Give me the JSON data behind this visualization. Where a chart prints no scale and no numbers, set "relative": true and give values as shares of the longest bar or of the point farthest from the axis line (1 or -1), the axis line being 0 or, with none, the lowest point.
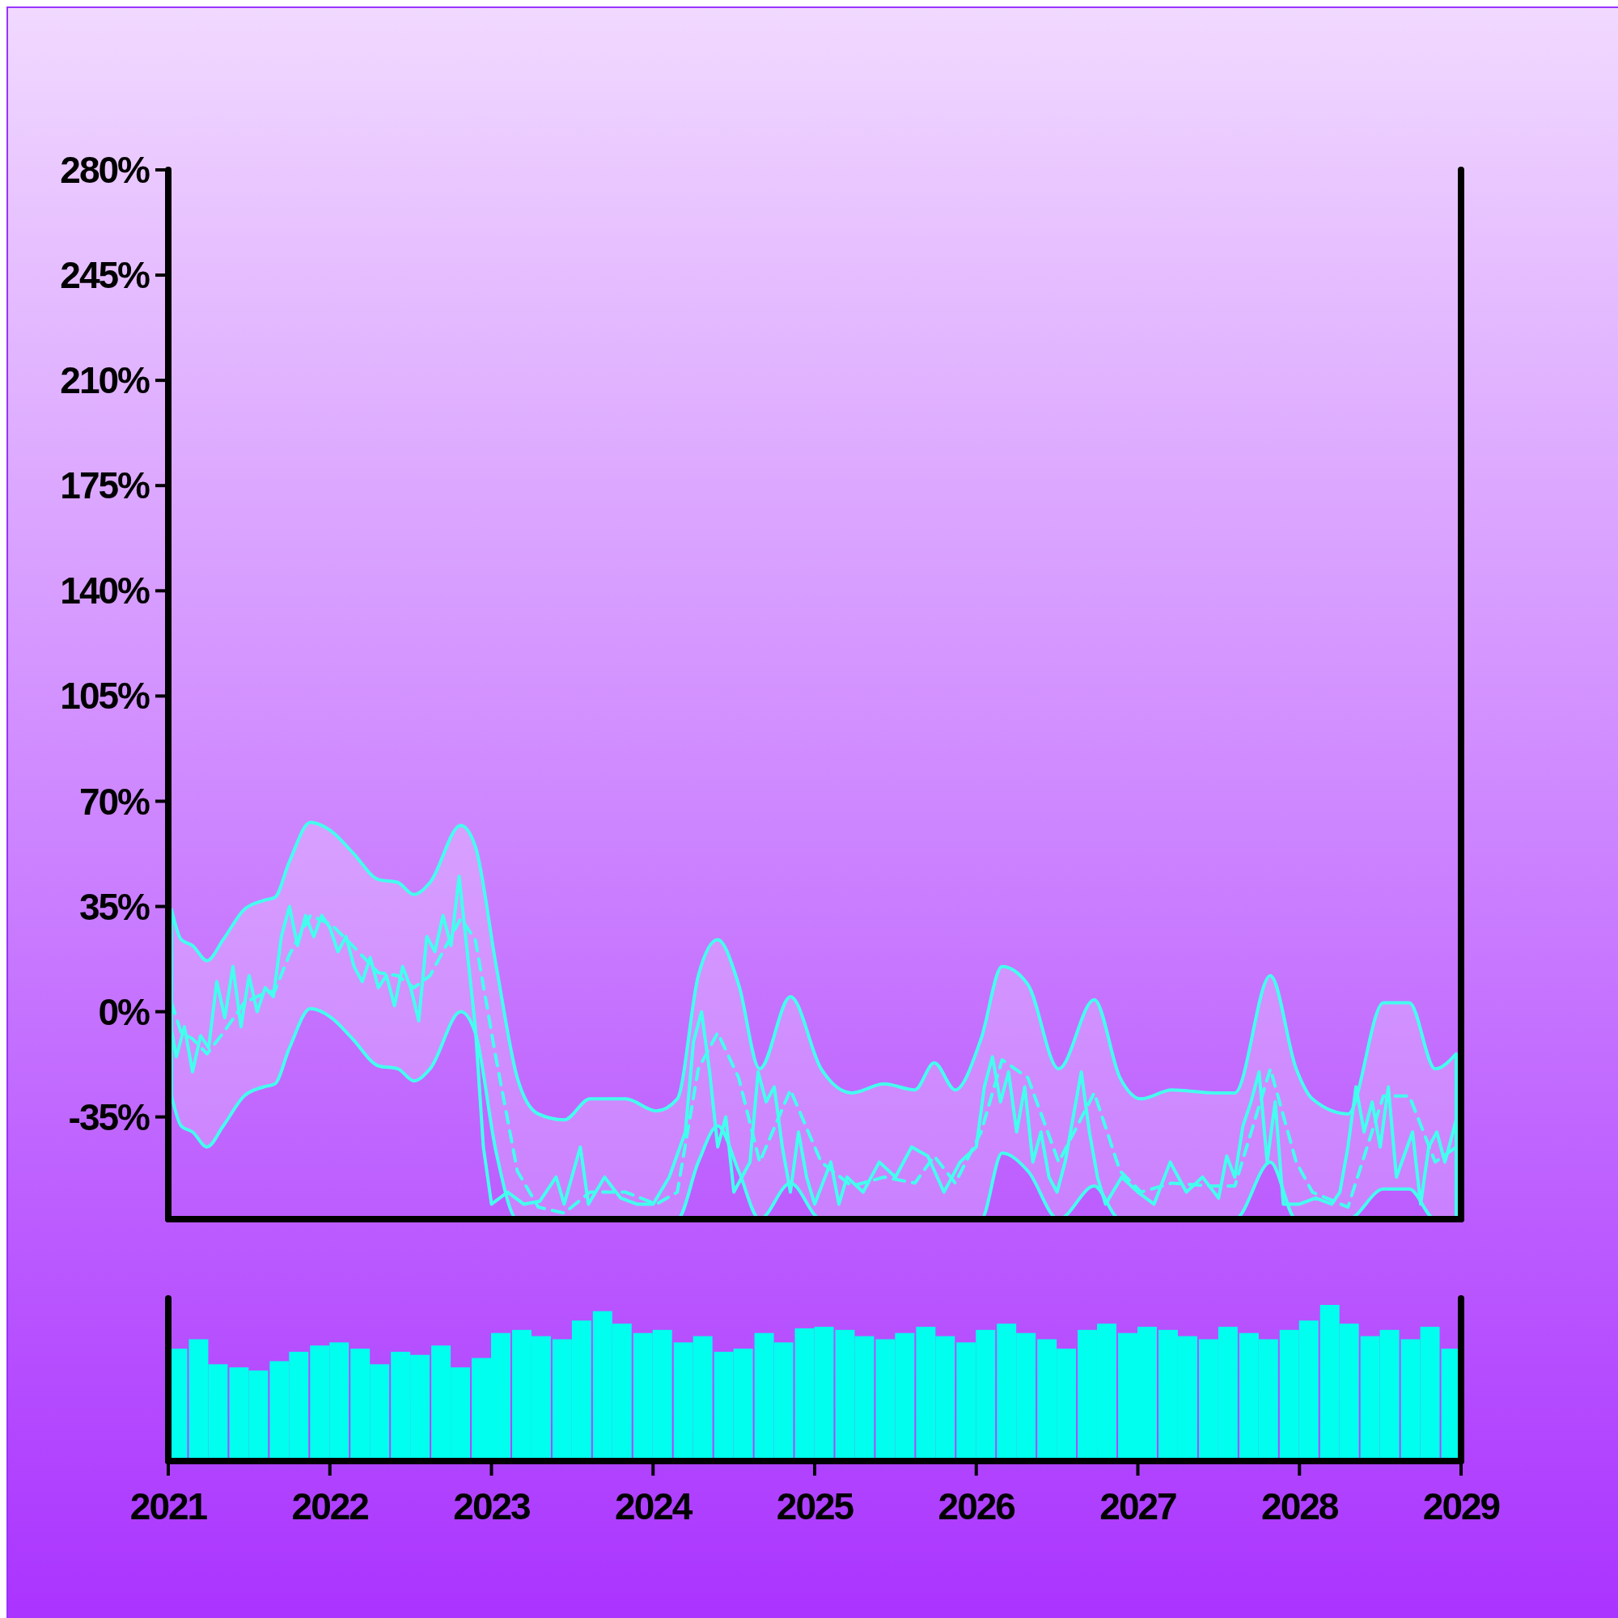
{
  "chart_data": [
    {
      "type": "line",
      "xlim": [
        2021,
        2029
      ],
      "ylim": [
        -69,
        280
      ],
      "yticks": [
        {
          "value": -35,
          "label": "-35%"
        },
        {
          "value": 0,
          "label": "0%"
        },
        {
          "value": 35,
          "label": "35%"
        },
        {
          "value": 70,
          "label": "70%"
        },
        {
          "value": 105,
          "label": "105%"
        },
        {
          "value": 140,
          "label": "140%"
        },
        {
          "value": 175,
          "label": "175%"
        },
        {
          "value": 210,
          "label": "210%"
        },
        {
          "value": 245,
          "label": "245%"
        },
        {
          "value": 280,
          "label": "280%"
        }
      ],
      "tick_labels": "y",
      "grid": false,
      "series": [
        {
          "type": "line",
          "line_style": "dashed",
          "color": "#44ffee",
          "x": [
            2021.02,
            2021.08,
            2021.15,
            2021.24,
            2021.34,
            2021.47,
            2021.59,
            2021.66,
            2021.75,
            2021.88,
            2022.01,
            2022.14,
            2022.3,
            2022.42,
            2022.52,
            2022.62,
            2022.81,
            2022.9,
            2023.03,
            2023.16,
            2023.29,
            2023.45,
            2023.61,
            2023.83,
            2024.02,
            2024.15,
            2024.28,
            2024.4,
            2024.53,
            2024.66,
            2024.85,
            2025.04,
            2025.23,
            2025.43,
            2025.62,
            2025.74,
            2025.87,
            2026.03,
            2026.16,
            2026.32,
            2026.51,
            2026.73,
            2026.89,
            2027.02,
            2027.21,
            2027.47,
            2027.6,
            2027.82,
            2027.98,
            2028.08,
            2028.3,
            2028.52,
            2028.68,
            2028.84,
            2028.97
          ],
          "values": [
            3,
            -7,
            -9,
            -14,
            -7,
            3,
            6,
            7,
            19,
            32,
            29,
            22,
            13,
            12,
            8,
            12,
            31,
            24,
            -16,
            -53,
            -65,
            -67,
            -60,
            -60,
            -64,
            -60,
            -19,
            -7,
            -22,
            -50,
            -26,
            -50,
            -58,
            -55,
            -57,
            -48,
            -57,
            -40,
            -16,
            -22,
            -50,
            -27,
            -53,
            -60,
            -57,
            -58,
            -58,
            -19,
            -50,
            -60,
            -65,
            -28,
            -28,
            -50,
            -45
          ],
          "upper": [
            34,
            24,
            22,
            17,
            24,
            34,
            37,
            38,
            50,
            63,
            60,
            53,
            44,
            43,
            39,
            43,
            62,
            55,
            15,
            -22,
            -34,
            -36,
            -29,
            -29,
            -33,
            -29,
            12,
            24,
            9,
            -19,
            5,
            -19,
            -27,
            -24,
            -26,
            -17,
            -26,
            -9,
            15,
            9,
            -19,
            4,
            -22,
            -29,
            -26,
            -27,
            -27,
            12,
            -19,
            -29,
            -34,
            3,
            3,
            -19,
            -14
          ],
          "lower": [
            -28,
            -38,
            -40,
            -45,
            -38,
            -28,
            -25,
            -24,
            -12,
            1,
            -2,
            -9,
            -18,
            -19,
            -23,
            -19,
            0,
            -7,
            -47,
            -69,
            -69,
            -69,
            -69,
            -69,
            -69,
            -69,
            -50,
            -38,
            -53,
            -69,
            -57,
            -69,
            -69,
            -69,
            -69,
            -69,
            -69,
            -69,
            -47,
            -53,
            -69,
            -58,
            -69,
            -69,
            -69,
            -69,
            -69,
            -50,
            -69,
            -69,
            -69,
            -59,
            -59,
            -69,
            -69
          ]
        },
        {
          "type": "line",
          "line_style": "solid",
          "color": "#44ffee",
          "x": [
            2021.0,
            2021.05,
            2021.1,
            2021.15,
            2021.2,
            2021.25,
            2021.3,
            2021.35,
            2021.4,
            2021.45,
            2021.5,
            2021.55,
            2021.6,
            2021.65,
            2021.7,
            2021.75,
            2021.8,
            2021.85,
            2021.9,
            2021.95,
            2022.0,
            2022.05,
            2022.1,
            2022.15,
            2022.2,
            2022.25,
            2022.3,
            2022.35,
            2022.4,
            2022.45,
            2022.5,
            2022.55,
            2022.6,
            2022.65,
            2022.7,
            2022.75,
            2022.8,
            2022.85,
            2022.9,
            2022.95,
            2023.0,
            2023.1,
            2023.2,
            2023.3,
            2023.4,
            2023.45,
            2023.55,
            2023.6,
            2023.7,
            2023.8,
            2023.9,
            2024.0,
            2024.1,
            2024.2,
            2024.25,
            2024.3,
            2024.35,
            2024.4,
            2024.45,
            2024.5,
            2024.6,
            2024.65,
            2024.7,
            2024.75,
            2024.8,
            2024.85,
            2024.9,
            2024.95,
            2025.0,
            2025.1,
            2025.15,
            2025.2,
            2025.3,
            2025.4,
            2025.5,
            2025.6,
            2025.7,
            2025.8,
            2025.9,
            2026.0,
            2026.05,
            2026.1,
            2026.15,
            2026.2,
            2026.25,
            2026.3,
            2026.35,
            2026.4,
            2026.45,
            2026.5,
            2026.55,
            2026.6,
            2026.65,
            2026.7,
            2026.75,
            2026.8,
            2026.9,
            2027.0,
            2027.1,
            2027.2,
            2027.3,
            2027.4,
            2027.5,
            2027.55,
            2027.6,
            2027.65,
            2027.7,
            2027.75,
            2027.8,
            2027.85,
            2027.9,
            2028.0,
            2028.1,
            2028.2,
            2028.25,
            2028.3,
            2028.35,
            2028.4,
            2028.45,
            2028.5,
            2028.55,
            2028.6,
            2028.7,
            2028.75,
            2028.8,
            2028.85,
            2028.9,
            2028.95,
            2029.0
          ],
          "values": [
            0,
            -15,
            -5,
            -20,
            -8,
            -12,
            10,
            -2,
            15,
            -5,
            12,
            0,
            8,
            5,
            25,
            35,
            22,
            32,
            25,
            32,
            28,
            20,
            25,
            15,
            10,
            18,
            8,
            12,
            2,
            15,
            8,
            -3,
            25,
            20,
            32,
            22,
            45,
            20,
            -5,
            -45,
            -64,
            -60,
            -64,
            -63,
            -55,
            -64,
            -45,
            -64,
            -55,
            -62,
            -64,
            -64,
            -55,
            -40,
            -10,
            0,
            -20,
            -45,
            -35,
            -60,
            -50,
            -20,
            -30,
            -25,
            -45,
            -60,
            -40,
            -55,
            -64,
            -50,
            -64,
            -55,
            -60,
            -50,
            -55,
            -45,
            -48,
            -60,
            -50,
            -45,
            -25,
            -15,
            -30,
            -20,
            -40,
            -25,
            -50,
            -40,
            -55,
            -60,
            -50,
            -35,
            -20,
            -40,
            -55,
            -64,
            -55,
            -60,
            -64,
            -50,
            -60,
            -55,
            -62,
            -48,
            -55,
            -38,
            -30,
            -20,
            -50,
            -30,
            -64,
            -64,
            -62,
            -64,
            -60,
            -45,
            -25,
            -40,
            -30,
            -45,
            -25,
            -55,
            -40,
            -64,
            -45,
            -40,
            -50,
            -40,
            -30
          ]
        }
      ]
    },
    {
      "type": "bar",
      "relative": true,
      "color": "#00ffee",
      "xlim": [
        2021,
        2029
      ],
      "xticks": [
        2021,
        2022,
        2023,
        2024,
        2025,
        2026,
        2027,
        2028,
        2029
      ],
      "x": [
        2021.06,
        2021.19,
        2021.31,
        2021.44,
        2021.56,
        2021.69,
        2021.81,
        2021.94,
        2022.06,
        2022.19,
        2022.31,
        2022.44,
        2022.56,
        2022.69,
        2022.81,
        2022.94,
        2023.06,
        2023.19,
        2023.31,
        2023.44,
        2023.56,
        2023.69,
        2023.81,
        2023.94,
        2024.06,
        2024.19,
        2024.31,
        2024.44,
        2024.56,
        2024.69,
        2024.81,
        2024.94,
        2025.06,
        2025.19,
        2025.31,
        2025.44,
        2025.56,
        2025.69,
        2025.81,
        2025.94,
        2026.06,
        2026.19,
        2026.31,
        2026.44,
        2026.56,
        2026.69,
        2026.81,
        2026.94,
        2027.06,
        2027.19,
        2027.31,
        2027.44,
        2027.56,
        2027.69,
        2027.81,
        2027.94,
        2028.06,
        2028.19,
        2028.31,
        2028.44,
        2028.56,
        2028.69,
        2028.81,
        2028.94
      ],
      "values": [
        0.72,
        0.78,
        0.62,
        0.6,
        0.58,
        0.64,
        0.7,
        0.74,
        0.76,
        0.72,
        0.62,
        0.7,
        0.68,
        0.74,
        0.6,
        0.66,
        0.82,
        0.84,
        0.8,
        0.78,
        0.9,
        0.96,
        0.88,
        0.82,
        0.84,
        0.76,
        0.8,
        0.7,
        0.72,
        0.82,
        0.76,
        0.85,
        0.86,
        0.84,
        0.8,
        0.78,
        0.82,
        0.86,
        0.8,
        0.76,
        0.84,
        0.88,
        0.82,
        0.78,
        0.72,
        0.84,
        0.88,
        0.82,
        0.86,
        0.84,
        0.8,
        0.78,
        0.86,
        0.82,
        0.78,
        0.84,
        0.9,
        1,
        0.88,
        0.8,
        0.84,
        0.78,
        0.86,
        0.72
      ]
    }
  ]
}
